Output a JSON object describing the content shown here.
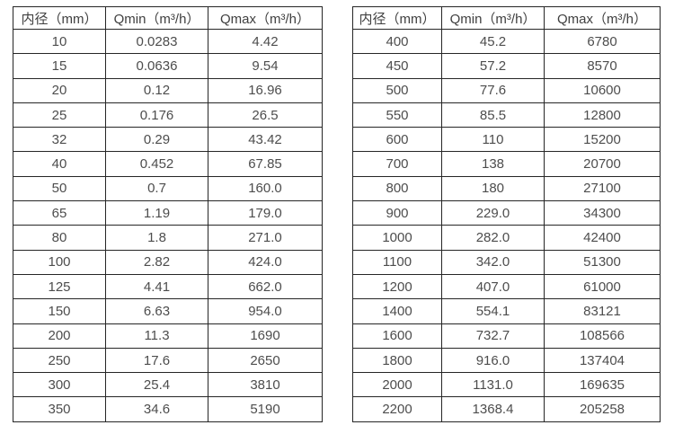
{
  "colors": {
    "border": "#262626",
    "text": "#4d4d4d",
    "header_text": "#404040",
    "background": "#ffffff"
  },
  "tables": [
    {
      "name": "flow-rate-table-small-diameters",
      "headers": [
        "内径（mm）",
        "Qmin（m³/h）",
        "Qmax（m³/h）"
      ],
      "rows": [
        [
          "10",
          "0.0283",
          "4.42"
        ],
        [
          "15",
          "0.0636",
          "9.54"
        ],
        [
          "20",
          "0.12",
          "16.96"
        ],
        [
          "25",
          "0.176",
          "26.5"
        ],
        [
          "32",
          "0.29",
          "43.42"
        ],
        [
          "40",
          "0.452",
          "67.85"
        ],
        [
          "50",
          "0.7",
          "160.0"
        ],
        [
          "65",
          "1.19",
          "179.0"
        ],
        [
          "80",
          "1.8",
          "271.0"
        ],
        [
          "100",
          "2.82",
          "424.0"
        ],
        [
          "125",
          "4.41",
          "662.0"
        ],
        [
          "150",
          "6.63",
          "954.0"
        ],
        [
          "200",
          "11.3",
          "1690"
        ],
        [
          "250",
          "17.6",
          "2650"
        ],
        [
          "300",
          "25.4",
          "3810"
        ],
        [
          "350",
          "34.6",
          "5190"
        ]
      ]
    },
    {
      "name": "flow-rate-table-large-diameters",
      "headers": [
        "内径（mm）",
        "Qmin（m³/h）",
        "Qmax（m³/h）"
      ],
      "rows": [
        [
          "400",
          "45.2",
          "6780"
        ],
        [
          "450",
          "57.2",
          "8570"
        ],
        [
          "500",
          "77.6",
          "10600"
        ],
        [
          "550",
          "85.5",
          "12800"
        ],
        [
          "600",
          "110",
          "15200"
        ],
        [
          "700",
          "138",
          "20700"
        ],
        [
          "800",
          "180",
          "27100"
        ],
        [
          "900",
          "229.0",
          "34300"
        ],
        [
          "1000",
          "282.0",
          "42400"
        ],
        [
          "1100",
          "342.0",
          "51300"
        ],
        [
          "1200",
          "407.0",
          "61000"
        ],
        [
          "1400",
          "554.1",
          "83121"
        ],
        [
          "1600",
          "732.7",
          "108566"
        ],
        [
          "1800",
          "916.0",
          "137404"
        ],
        [
          "2000",
          "1131.0",
          "169635"
        ],
        [
          "2200",
          "1368.4",
          "205258"
        ]
      ]
    }
  ]
}
